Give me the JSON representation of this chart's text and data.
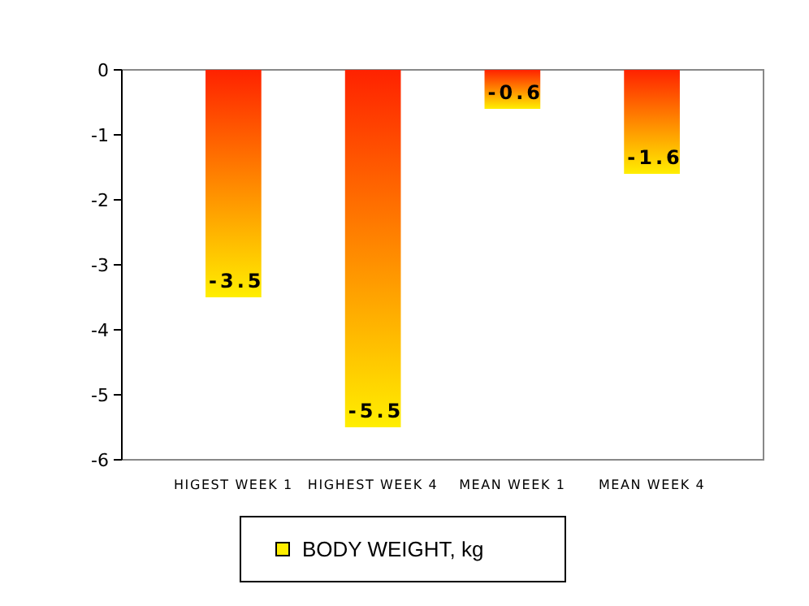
{
  "chart_data": {
    "type": "bar",
    "categories": [
      "HIGEST WEEK 1",
      "HIGHEST WEEK 4",
      "MEAN WEEK 1",
      "MEAN WEEK 4"
    ],
    "series": [
      {
        "name": "BODY WEIGHT, kg",
        "color": "#ffee00",
        "values": [
          -3.5,
          -5.5,
          -0.6,
          -1.6
        ]
      }
    ],
    "ylim": [
      -6,
      0
    ],
    "yticks": [
      -6,
      -5,
      -4,
      -3,
      -2,
      -1,
      0
    ],
    "data_labels": true,
    "legend": "bottom",
    "grid": false
  }
}
